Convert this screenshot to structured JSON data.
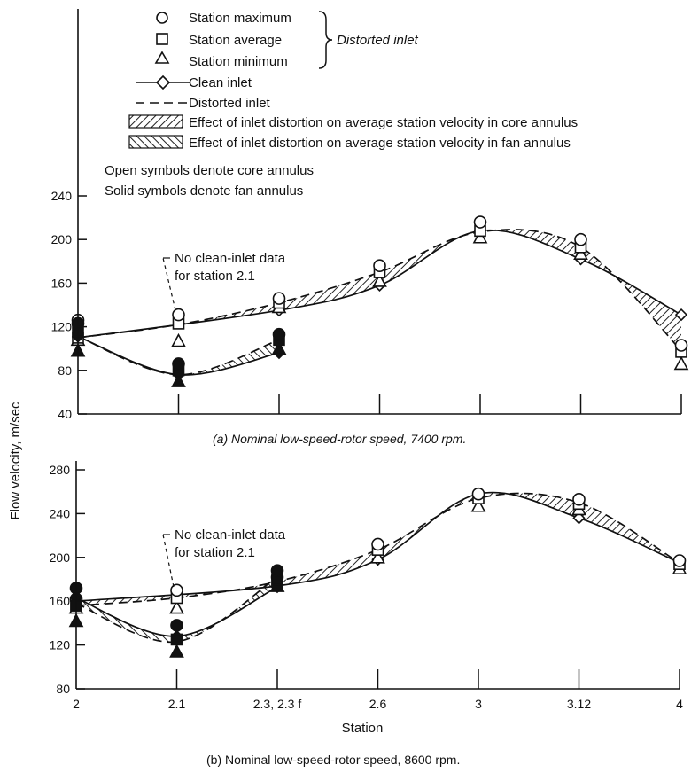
{
  "chart_data": {
    "type": "line",
    "ylabel": "Flow velocity, m/sec",
    "xlabel": "Station",
    "legend": {
      "symbols": [
        {
          "symbol": "circle",
          "label": "Station maximum"
        },
        {
          "symbol": "square",
          "label": "Station average"
        },
        {
          "symbol": "triangle",
          "label": "Station minimum"
        }
      ],
      "symbols_group_label": "Distorted inlet",
      "lines": [
        {
          "style": "solid-diamond",
          "label": "Clean inlet"
        },
        {
          "style": "dashed",
          "label": "Distorted inlet"
        }
      ],
      "bands": [
        {
          "hatch": "forward",
          "label": "Effect of inlet distortion on average station velocity in core annulus"
        },
        {
          "hatch": "back",
          "label": "Effect of inlet distortion on average station velocity in fan annulus"
        }
      ],
      "notes": [
        "Open symbols denote core annulus",
        "Solid symbols denote fan annulus"
      ]
    },
    "stations": [
      "2",
      "2.1",
      "2.3, 2.3 f",
      "2.6",
      "3",
      "3.12",
      "4"
    ],
    "panels": [
      {
        "id": "a",
        "caption": "(a) Nominal low-speed-rotor speed, 7400 rpm.",
        "ylim": [
          40,
          260
        ],
        "yticks": [
          40,
          80,
          120,
          160,
          200,
          240
        ],
        "annotation": [
          "No clean-inlet data",
          "for station 2.1"
        ],
        "core": {
          "clean": {
            "x": [
              0,
              2,
              3,
              4,
              5,
              6
            ],
            "y": [
              110,
              135,
              158,
              208,
              182,
              131
            ]
          },
          "distorted_avg": {
            "x": [
              0,
              1,
              2,
              3,
              4,
              5,
              6
            ],
            "y": [
              110,
              122,
              142,
              170,
              207,
              193,
              98
            ]
          },
          "max": {
            "x": [
              0,
              1,
              2,
              3,
              4,
              5,
              6
            ],
            "y": [
              126,
              131,
              146,
              176,
              216,
              200,
              103
            ]
          },
          "avg": {
            "x": [
              0,
              1,
              2,
              3,
              4,
              5,
              6
            ],
            "y": [
              110,
              123,
              142,
              170,
              208,
              193,
              97
            ]
          },
          "min": {
            "x": [
              0,
              1,
              2,
              3,
              4,
              5,
              6
            ],
            "y": [
              108,
              107,
              138,
              162,
              202,
              187,
              86
            ]
          }
        },
        "fan": {
          "clean": {
            "x": [
              0,
              1,
              2
            ],
            "y": [
              111,
              76,
              96
            ]
          },
          "distorted_avg": {
            "x": [
              0,
              1,
              2
            ],
            "y": [
              111,
              76,
              108
            ]
          },
          "max": {
            "x": [
              0,
              1,
              2
            ],
            "y": [
              123,
              86,
              113
            ]
          },
          "avg": {
            "x": [
              0,
              1,
              2
            ],
            "y": [
              116,
              80,
              108
            ]
          },
          "min": {
            "x": [
              0,
              1,
              2
            ],
            "y": [
              98,
              70,
              100
            ]
          }
        }
      },
      {
        "id": "b",
        "caption": "(b) Nominal low-speed-rotor speed, 8600 rpm.",
        "ylim": [
          80,
          290
        ],
        "yticks": [
          80,
          120,
          160,
          200,
          240,
          280
        ],
        "annotation": [
          "No clean-inlet data",
          "for station 2.1"
        ],
        "core": {
          "clean": {
            "x": [
              0,
              2,
              3,
              4,
              5,
              6
            ],
            "y": [
              160,
              174,
              198,
              258,
              236,
              195
            ]
          },
          "distorted_avg": {
            "x": [
              0,
              1,
              2,
              3,
              4,
              5,
              6
            ],
            "y": [
              156,
              163,
              178,
              207,
              254,
              250,
              195
            ]
          },
          "max": {
            "x": [
              0,
              1,
              2,
              3,
              4,
              5,
              6
            ],
            "y": [
              162,
              170,
              182,
              212,
              258,
              253,
              197
            ]
          },
          "avg": {
            "x": [
              0,
              1,
              2,
              3,
              4,
              5,
              6
            ],
            "y": [
              157,
              163,
              178,
              207,
              254,
              249,
              194
            ]
          },
          "min": {
            "x": [
              0,
              1,
              2,
              3,
              4,
              5,
              6
            ],
            "y": [
              154,
              154,
              174,
              200,
              247,
              244,
              190
            ]
          }
        },
        "fan": {
          "clean": {
            "x": [
              0,
              1,
              2
            ],
            "y": [
              163,
              128,
              173
            ]
          },
          "distorted_avg": {
            "x": [
              0,
              1,
              2
            ],
            "y": [
              158,
              123,
              182
            ]
          },
          "max": {
            "x": [
              0,
              1,
              2
            ],
            "y": [
              172,
              138,
              188
            ]
          },
          "avg": {
            "x": [
              0,
              1,
              2
            ],
            "y": [
              156,
              125,
              180
            ]
          },
          "min": {
            "x": [
              0,
              1,
              2
            ],
            "y": [
              142,
              114,
              174
            ]
          }
        }
      }
    ]
  }
}
